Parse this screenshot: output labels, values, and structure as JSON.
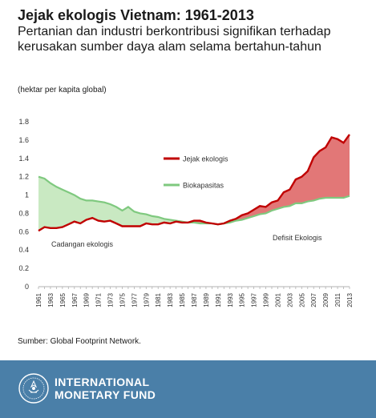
{
  "header": {
    "title": "Jejak ekologis Vietnam: 1961-2013",
    "subtitle": "Pertanian dan industri berkontribusi signifikan terhadap kerusakan sumber daya alam selama bertahun-tahun",
    "unit": "(hektar per kapita global)"
  },
  "colors": {
    "footprint": "#c00000",
    "footprint_fill": "#e27777",
    "biocapacity": "#7fc97f",
    "biocapacity_fill": "#c9e9c2",
    "axis": "#b0b0b0",
    "footer": "#4a7fa8"
  },
  "chart_data": {
    "type": "line",
    "x": [
      1961,
      1962,
      1963,
      1964,
      1965,
      1966,
      1967,
      1968,
      1969,
      1970,
      1971,
      1972,
      1973,
      1974,
      1975,
      1976,
      1977,
      1978,
      1979,
      1980,
      1981,
      1982,
      1983,
      1984,
      1985,
      1986,
      1987,
      1988,
      1989,
      1990,
      1991,
      1992,
      1993,
      1994,
      1995,
      1996,
      1997,
      1998,
      1999,
      2000,
      2001,
      2002,
      2003,
      2004,
      2005,
      2006,
      2007,
      2008,
      2009,
      2010,
      2011,
      2012,
      2013
    ],
    "series": [
      {
        "name": "Jejak ekologis",
        "values": [
          0.61,
          0.65,
          0.64,
          0.64,
          0.65,
          0.68,
          0.71,
          0.69,
          0.73,
          0.75,
          0.72,
          0.71,
          0.72,
          0.69,
          0.66,
          0.66,
          0.66,
          0.66,
          0.69,
          0.68,
          0.68,
          0.7,
          0.69,
          0.71,
          0.7,
          0.7,
          0.72,
          0.72,
          0.7,
          0.69,
          0.68,
          0.69,
          0.72,
          0.74,
          0.78,
          0.8,
          0.84,
          0.88,
          0.87,
          0.92,
          0.94,
          1.03,
          1.06,
          1.17,
          1.2,
          1.26,
          1.41,
          1.48,
          1.52,
          1.63,
          1.61,
          1.57,
          1.66
        ]
      },
      {
        "name": "Biokapasitas",
        "values": [
          1.2,
          1.18,
          1.13,
          1.09,
          1.06,
          1.03,
          1.0,
          0.96,
          0.94,
          0.94,
          0.93,
          0.92,
          0.9,
          0.87,
          0.83,
          0.87,
          0.82,
          0.8,
          0.79,
          0.77,
          0.76,
          0.74,
          0.73,
          0.72,
          0.71,
          0.7,
          0.7,
          0.69,
          0.69,
          0.69,
          0.68,
          0.69,
          0.7,
          0.72,
          0.73,
          0.75,
          0.77,
          0.79,
          0.8,
          0.83,
          0.85,
          0.87,
          0.88,
          0.91,
          0.91,
          0.93,
          0.94,
          0.96,
          0.97,
          0.97,
          0.97,
          0.97,
          0.99
        ]
      }
    ],
    "ylim": [
      0,
      1.8
    ],
    "yticks": [
      "0",
      "0.2",
      "0.4",
      "0.6",
      "0.8",
      "1",
      "1.2",
      "1.4",
      "1.6",
      "1.8"
    ],
    "xticks": [
      "1961",
      "1963",
      "1965",
      "1967",
      "1969",
      "1971",
      "1973",
      "1975",
      "1977",
      "1979",
      "1981",
      "1983",
      "1985",
      "1987",
      "1989",
      "1991",
      "1993",
      "1995",
      "1997",
      "1999",
      "2001",
      "2003",
      "2005",
      "2007",
      "2009",
      "2011",
      "2013"
    ],
    "legend": [
      "Jejak ekologis",
      "Biokapasitas"
    ],
    "legend_position": "top-center",
    "annotations": [
      "Cadangan ekologis",
      "Defisit Ekologis"
    ],
    "grid": false
  },
  "source": "Sumber: Global Footprint Network.",
  "footer": {
    "org_line1": "INTERNATIONAL",
    "org_line2": "MONETARY FUND"
  }
}
